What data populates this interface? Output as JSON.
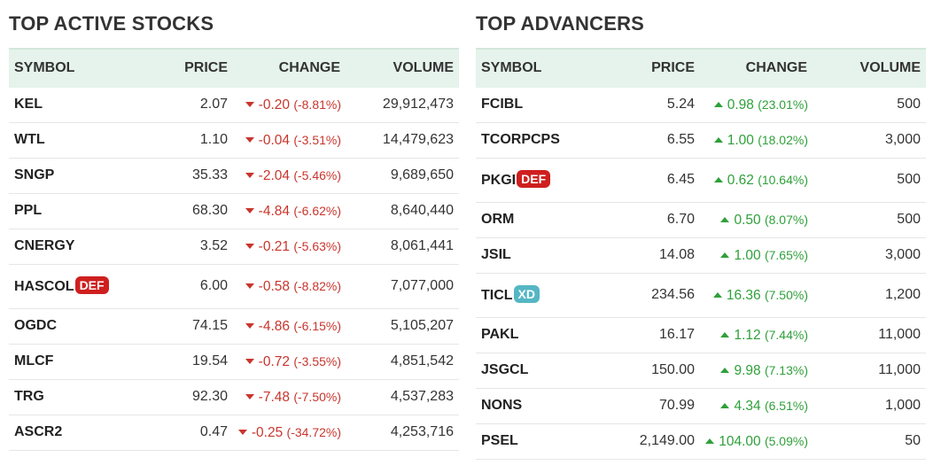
{
  "active": {
    "title": "TOP ACTIVE STOCKS",
    "headers": {
      "symbol": "SYMBOL",
      "price": "PRICE",
      "change": "CHANGE",
      "volume": "VOLUME"
    },
    "rows": [
      {
        "symbol": "KEL",
        "price": "2.07",
        "change": "-0.20",
        "pct": "(-8.81%)",
        "volume": "29,912,473",
        "dir": "down"
      },
      {
        "symbol": "WTL",
        "price": "1.10",
        "change": "-0.04",
        "pct": "(-3.51%)",
        "volume": "14,479,623",
        "dir": "down"
      },
      {
        "symbol": "SNGP",
        "price": "35.33",
        "change": "-2.04",
        "pct": "(-5.46%)",
        "volume": "9,689,650",
        "dir": "down"
      },
      {
        "symbol": "PPL",
        "price": "68.30",
        "change": "-4.84",
        "pct": "(-6.62%)",
        "volume": "8,640,440",
        "dir": "down"
      },
      {
        "symbol": "CNERGY",
        "price": "3.52",
        "change": "-0.21",
        "pct": "(-5.63%)",
        "volume": "8,061,441",
        "dir": "down"
      },
      {
        "symbol": "HASCOL",
        "badge": "DEF",
        "badge_type": "def",
        "price": "6.00",
        "change": "-0.58",
        "pct": "(-8.82%)",
        "volume": "7,077,000",
        "dir": "down"
      },
      {
        "symbol": "OGDC",
        "price": "74.15",
        "change": "-4.86",
        "pct": "(-6.15%)",
        "volume": "5,105,207",
        "dir": "down"
      },
      {
        "symbol": "MLCF",
        "price": "19.54",
        "change": "-0.72",
        "pct": "(-3.55%)",
        "volume": "4,851,542",
        "dir": "down"
      },
      {
        "symbol": "TRG",
        "price": "92.30",
        "change": "-7.48",
        "pct": "(-7.50%)",
        "volume": "4,537,283",
        "dir": "down"
      },
      {
        "symbol": "ASCR2",
        "price": "0.47",
        "change": "-0.25",
        "pct": "(-34.72%)",
        "volume": "4,253,716",
        "dir": "down"
      }
    ]
  },
  "advancers": {
    "title": "TOP ADVANCERS",
    "headers": {
      "symbol": "SYMBOL",
      "price": "PRICE",
      "change": "CHANGE",
      "volume": "VOLUME"
    },
    "rows": [
      {
        "symbol": "FCIBL",
        "price": "5.24",
        "change": "0.98",
        "pct": "(23.01%)",
        "volume": "500",
        "dir": "up"
      },
      {
        "symbol": "TCORPCPS",
        "price": "6.55",
        "change": "1.00",
        "pct": "(18.02%)",
        "volume": "3,000",
        "dir": "up"
      },
      {
        "symbol": "PKGI",
        "badge": "DEF",
        "badge_type": "def",
        "price": "6.45",
        "change": "0.62",
        "pct": "(10.64%)",
        "volume": "500",
        "dir": "up"
      },
      {
        "symbol": "ORM",
        "price": "6.70",
        "change": "0.50",
        "pct": "(8.07%)",
        "volume": "500",
        "dir": "up"
      },
      {
        "symbol": "JSIL",
        "price": "14.08",
        "change": "1.00",
        "pct": "(7.65%)",
        "volume": "3,000",
        "dir": "up"
      },
      {
        "symbol": "TICL",
        "badge": "XD",
        "badge_type": "xd",
        "price": "234.56",
        "change": "16.36",
        "pct": "(7.50%)",
        "volume": "1,200",
        "dir": "up"
      },
      {
        "symbol": "PAKL",
        "price": "16.17",
        "change": "1.12",
        "pct": "(7.44%)",
        "volume": "11,000",
        "dir": "up"
      },
      {
        "symbol": "JSGCL",
        "price": "150.00",
        "change": "9.98",
        "pct": "(7.13%)",
        "volume": "11,000",
        "dir": "up"
      },
      {
        "symbol": "NONS",
        "price": "70.99",
        "change": "4.34",
        "pct": "(6.51%)",
        "volume": "1,000",
        "dir": "up"
      },
      {
        "symbol": "PSEL",
        "price": "2,149.00",
        "change": "104.00",
        "pct": "(5.09%)",
        "volume": "50",
        "dir": "up"
      }
    ]
  },
  "colors": {
    "negative": "#c8352d",
    "positive": "#2fa03a",
    "header_bg": "#e5f3ec",
    "badge_def": "#cf1f1f",
    "badge_xd": "#55b6c4"
  },
  "icons": {
    "down": "triangle-down-icon",
    "up": "triangle-up-icon"
  }
}
